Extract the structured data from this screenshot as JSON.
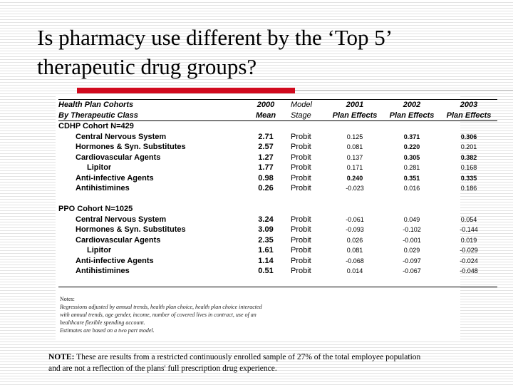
{
  "title": {
    "line1": "Is pharmacy use different by the ‘Top 5’",
    "line2": "therapeutic drug groups?"
  },
  "table": {
    "headers": {
      "col1": [
        "Health Plan Cohorts",
        "By Therapeutic Class"
      ],
      "col2": [
        "2000",
        "Mean"
      ],
      "col3": [
        "Model",
        "Stage"
      ],
      "col4": [
        "2001",
        "Plan Effects"
      ],
      "col5": [
        "2002",
        "Plan Effects"
      ],
      "col6": [
        "2003",
        "Plan Effects"
      ]
    },
    "cohorts": [
      {
        "label": "CDHP Cohort N=429",
        "rows": [
          {
            "name": "Central Nervous System",
            "mean": "2.71",
            "stage": "Probit",
            "e2001": "0.125",
            "e2002": "0.371",
            "e2003": "0.306"
          },
          {
            "name": "Hormones & Syn. Substitutes",
            "mean": "2.57",
            "stage": "Probit",
            "e2001": "0.081",
            "e2002": "0.220",
            "e2003": "0.201"
          },
          {
            "name": "Cardiovascular Agents",
            "mean": "1.27",
            "stage": "Probit",
            "e2001": "0.137",
            "e2002": "0.305",
            "e2003": "0.382"
          },
          {
            "name": "Lipitor",
            "mean": "1.77",
            "stage": "Probit",
            "e2001": "0.171",
            "e2002": "0.281",
            "e2003": "0.168"
          },
          {
            "name": "Anti-infective Agents",
            "mean": "0.98",
            "stage": "Probit",
            "e2001": "0.240",
            "e2002": "0.351",
            "e2003": "0.335"
          },
          {
            "name": "Antihistimines",
            "mean": "0.26",
            "stage": "Probit",
            "e2001": "-0.023",
            "e2002": "0.016",
            "e2003": "0.186"
          }
        ]
      },
      {
        "label": "PPO Cohort N=1025",
        "rows": [
          {
            "name": "Central Nervous System",
            "mean": "3.24",
            "stage": "Probit",
            "e2001": "-0.061",
            "e2002": "0.049",
            "e2003": "0.054"
          },
          {
            "name": "Hormones & Syn. Substitutes",
            "mean": "3.09",
            "stage": "Probit",
            "e2001": "-0.093",
            "e2002": "-0.102",
            "e2003": "-0.144"
          },
          {
            "name": "Cardiovascular Agents",
            "mean": "2.35",
            "stage": "Probit",
            "e2001": "0.026",
            "e2002": "-0.001",
            "e2003": "0.019"
          },
          {
            "name": "Lipitor",
            "mean": "1.61",
            "stage": "Probit",
            "e2001": "0.081",
            "e2002": "0.029",
            "e2003": "-0.029"
          },
          {
            "name": "Anti-infective Agents",
            "mean": "1.14",
            "stage": "Probit",
            "e2001": "-0.068",
            "e2002": "-0.097",
            "e2003": "-0.024"
          },
          {
            "name": "Antihistimines",
            "mean": "0.51",
            "stage": "Probit",
            "e2001": "0.014",
            "e2002": "-0.067",
            "e2003": "-0.048"
          }
        ]
      }
    ]
  },
  "notes": {
    "heading": "Notes:",
    "line1": "Regressions adjusted by annual trends, health plan choice, health plan choice interacted",
    "line2": "with annual trends, age gender, income, number of covered lives in contract, use of an",
    "line3": "healthcare flexible spending account.",
    "line4": "Estimates are based on a two part model."
  },
  "bottom_note": {
    "label": "NOTE:",
    "line1": "These are results from a restricted continuously enrolled sample of 27% of the total employee population",
    "line2": "and are not a reflection of the plans' full prescription drug experience."
  },
  "colors": {
    "accent_bar": "#d10a1e"
  }
}
